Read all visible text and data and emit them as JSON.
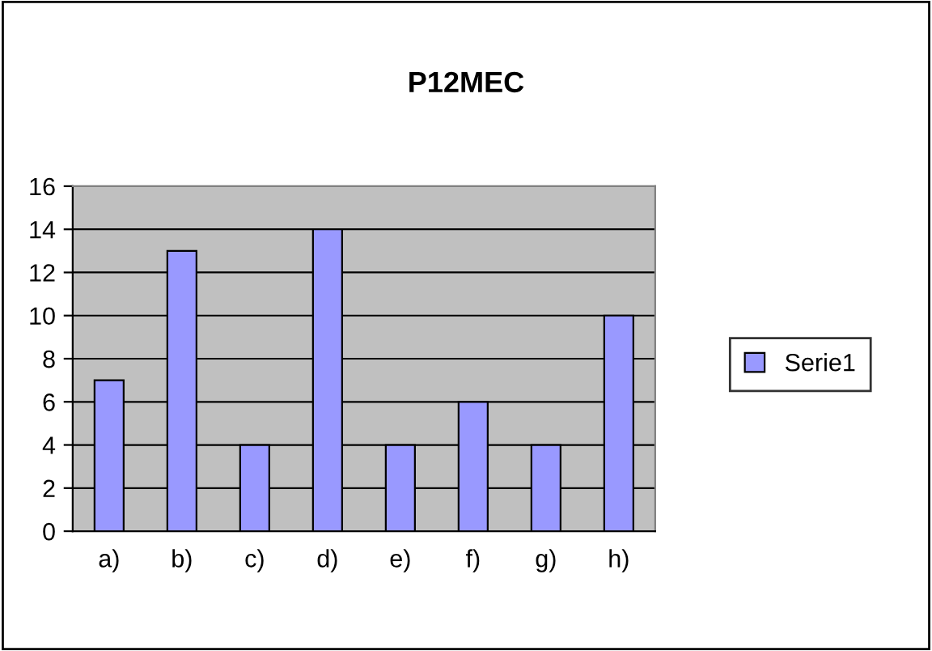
{
  "chart_data": {
    "type": "bar",
    "title": "P12MEC",
    "categories": [
      "a)",
      "b)",
      "c)",
      "d)",
      "e)",
      "f)",
      "g)",
      "h)"
    ],
    "series": [
      {
        "name": "Serie1",
        "color": "#9999ff",
        "values": [
          7,
          13,
          4,
          14,
          4,
          6,
          4,
          10
        ]
      }
    ],
    "ylim": [
      0,
      16
    ],
    "yticks": [
      0,
      2,
      4,
      6,
      8,
      10,
      12,
      14,
      16
    ],
    "grid": "y",
    "legend": "right"
  }
}
